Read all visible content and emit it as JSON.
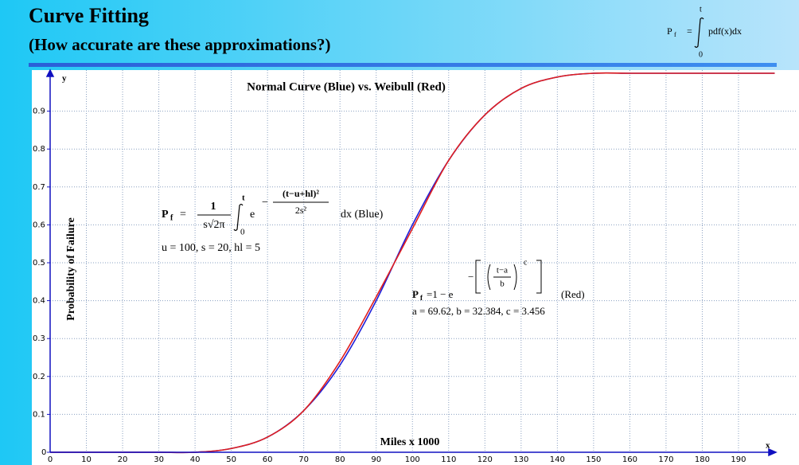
{
  "header": {
    "title": "Curve Fitting",
    "subtitle": "(How accurate are these approximations?)",
    "formula": {
      "lhs": "P",
      "lhs_sub": "f",
      "equals": "=",
      "upper": "t",
      "lower": "0",
      "integrand": "pdf(x)dx"
    }
  },
  "chart_data": {
    "type": "line",
    "title": "Normal Curve (Blue)  vs.  Weibull (Red)",
    "x_label": "Miles x 1000",
    "y_label": "Probability of Failure",
    "x_axis_letter": "x",
    "y_axis_letter": "y",
    "x": [
      0,
      10,
      20,
      30,
      40,
      50,
      60,
      70,
      80,
      90,
      100,
      110,
      120,
      130,
      140,
      150,
      160,
      170,
      180,
      190,
      200
    ],
    "series": [
      {
        "name": "Normal",
        "color": "#1f1fd8",
        "values": [
          0,
          0,
          0,
          0,
          0,
          0.01,
          0.04,
          0.11,
          0.23,
          0.4,
          0.6,
          0.77,
          0.89,
          0.96,
          0.99,
          1,
          1,
          1,
          1,
          1,
          1
        ]
      },
      {
        "name": "Weibull",
        "color": "#e01e1e",
        "values": [
          0,
          0,
          0,
          0,
          0,
          0.01,
          0.04,
          0.11,
          0.24,
          0.41,
          0.59,
          0.77,
          0.89,
          0.96,
          0.99,
          1,
          1,
          1,
          1,
          1,
          1
        ]
      }
    ],
    "xlim": [
      0,
      200
    ],
    "ylim": [
      0,
      1
    ],
    "xticks": [
      0,
      10,
      20,
      30,
      40,
      50,
      60,
      70,
      80,
      90,
      100,
      110,
      120,
      130,
      140,
      150,
      160,
      170,
      180,
      190
    ],
    "yticks": [
      0,
      0.1,
      0.2,
      0.3,
      0.4,
      0.5,
      0.6,
      0.7,
      0.8,
      0.9
    ],
    "grid": true,
    "annotations": {
      "normal": {
        "lhs": "P",
        "lhs_sub": "f",
        "equals": "=",
        "numerator": "1",
        "denominator": "s√2π",
        "upper": "t",
        "lower": "0",
        "base": "e",
        "minus": "−",
        "exp_numerator": "(t−u+hl)²",
        "exp_denominator": "2s²",
        "tail": "dx   (Blue)",
        "params": "u = 100,  s = 20,  hl = 5"
      },
      "weibull": {
        "lhs": "P",
        "lhs_sub": "f",
        "rhs": "=1 − e",
        "minus": "−",
        "frac_top": "t−a",
        "frac_bottom": "b",
        "power": "c",
        "tail": "(Red)",
        "params": "a = 69.62,   b = 32.384,   c = 3.456"
      }
    }
  }
}
